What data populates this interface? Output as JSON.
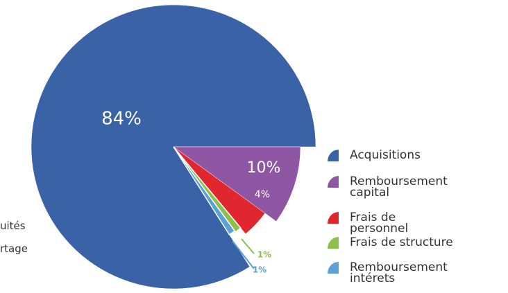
{
  "chart_data": {
    "type": "pie",
    "categories": [
      "Acquisitions",
      "Remboursement capital",
      "Frais de personnel",
      "Frais de structure",
      "Remboursement intérets"
    ],
    "values": [
      84,
      10,
      4,
      1,
      1
    ],
    "value_labels": [
      "84%",
      "10%",
      "4%",
      "1%",
      "1%"
    ],
    "colors": [
      "#3a62a7",
      "#8e56a3",
      "#e0262e",
      "#8cc04a",
      "#5ba0d6"
    ],
    "annotations": [
      "uités",
      "rtage"
    ]
  }
}
